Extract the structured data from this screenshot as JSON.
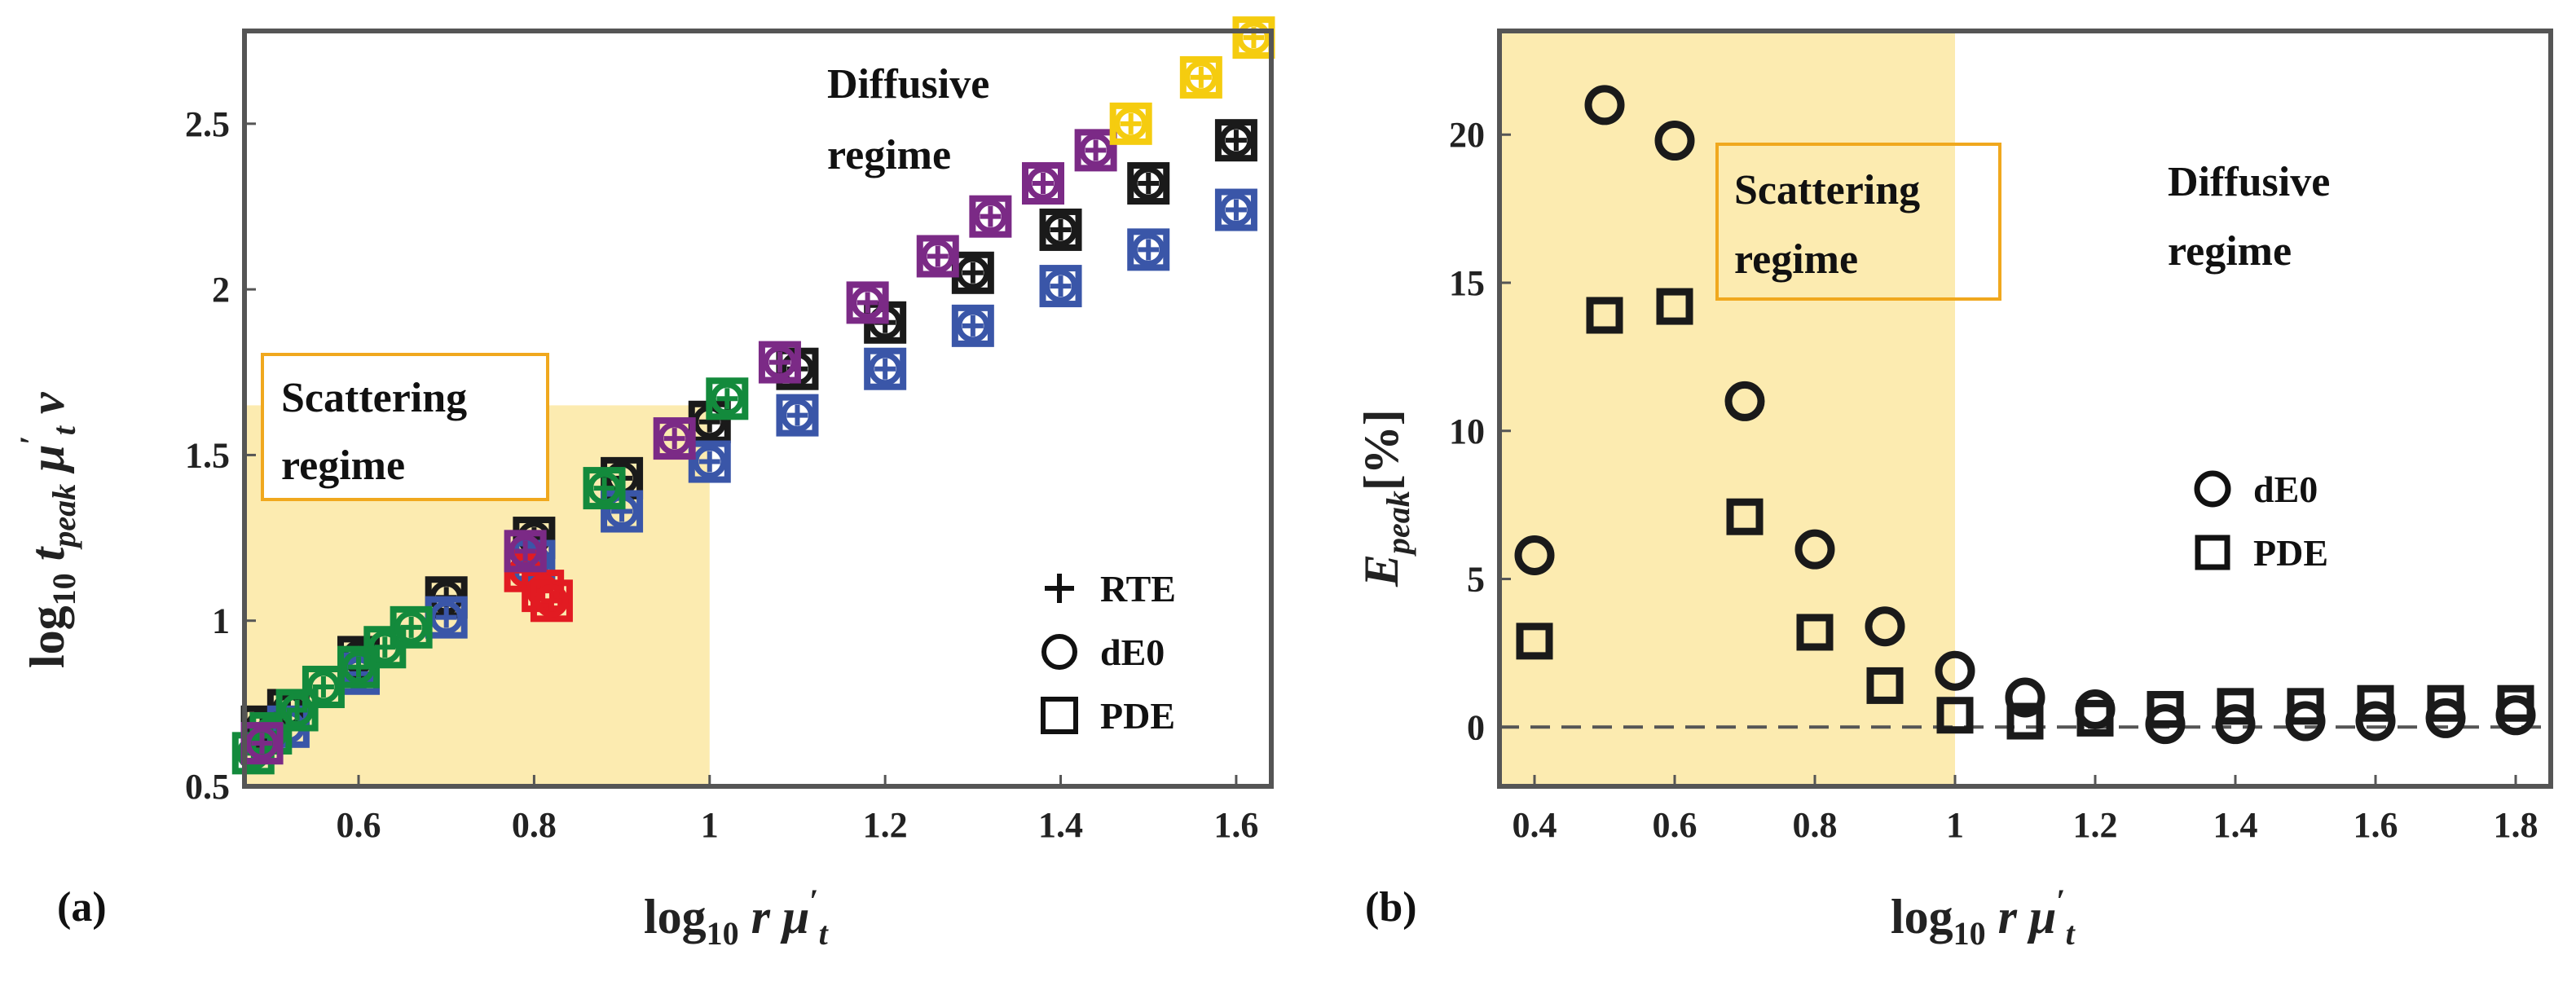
{
  "colors": {
    "black": "#1a1a1a",
    "blue": "#3a56a8",
    "green": "#138a3c",
    "red": "#e21b22",
    "purple": "#7b2a86",
    "yellow": "#f5cc0f",
    "shade": "#fcebb0",
    "box_border": "#f0a81e"
  },
  "chart_data": [
    {
      "type": "scatter",
      "panel": "(a)",
      "xlim": [
        0.47,
        1.64
      ],
      "ylim": [
        0.5,
        2.78
      ],
      "xticks": [
        "0.6",
        "0.8",
        "1",
        "1.2",
        "1.4",
        "1.6"
      ],
      "yticks": [
        "0.5",
        "1",
        "1.5",
        "2",
        "2.5"
      ],
      "shaded_region": {
        "x": [
          0.47,
          1.0
        ],
        "y": [
          0.5,
          1.65
        ]
      },
      "annotations": {
        "scattering_line1": "Scattering",
        "scattering_line2": "regime",
        "diffusive_line1": "Diffusive",
        "diffusive_line2": "regime"
      },
      "legend": {
        "placement": "bottom-right",
        "entries": [
          "RTE",
          "dE0",
          "PDE"
        ]
      },
      "series": [
        {
          "color": "black",
          "points": [
            [
              0.49,
              0.68
            ],
            [
              0.52,
              0.73
            ],
            [
              0.6,
              0.89
            ],
            [
              0.7,
              1.07
            ],
            [
              0.8,
              1.25
            ],
            [
              0.9,
              1.43
            ],
            [
              1.0,
              1.6
            ],
            [
              1.1,
              1.76
            ],
            [
              1.2,
              1.9
            ],
            [
              1.3,
              2.05
            ],
            [
              1.4,
              2.18
            ],
            [
              1.5,
              2.32
            ],
            [
              1.6,
              2.45
            ]
          ]
        },
        {
          "color": "blue",
          "points": [
            [
              0.49,
              0.63
            ],
            [
              0.52,
              0.68
            ],
            [
              0.6,
              0.84
            ],
            [
              0.7,
              1.01
            ],
            [
              0.8,
              1.18
            ],
            [
              0.9,
              1.33
            ],
            [
              1.0,
              1.48
            ],
            [
              1.1,
              1.62
            ],
            [
              1.2,
              1.76
            ],
            [
              1.3,
              1.89
            ],
            [
              1.4,
              2.01
            ],
            [
              1.5,
              2.12
            ],
            [
              1.6,
              2.24
            ]
          ]
        },
        {
          "color": "green",
          "points": [
            [
              0.48,
              0.6
            ],
            [
              0.5,
              0.66
            ],
            [
              0.53,
              0.73
            ],
            [
              0.56,
              0.8
            ],
            [
              0.6,
              0.86
            ],
            [
              0.63,
              0.92
            ],
            [
              0.66,
              0.98
            ],
            [
              0.88,
              1.4
            ],
            [
              1.02,
              1.67
            ]
          ]
        },
        {
          "color": "red",
          "points": [
            [
              0.79,
              1.15
            ],
            [
              0.81,
              1.09
            ],
            [
              0.82,
              1.06
            ]
          ]
        },
        {
          "color": "purple",
          "points": [
            [
              0.49,
              0.63
            ],
            [
              0.79,
              1.21
            ],
            [
              0.96,
              1.55
            ],
            [
              1.08,
              1.78
            ],
            [
              1.18,
              1.96
            ],
            [
              1.26,
              2.1
            ],
            [
              1.32,
              2.22
            ],
            [
              1.38,
              2.32
            ],
            [
              1.44,
              2.42
            ]
          ]
        },
        {
          "color": "yellow",
          "points": [
            [
              1.48,
              2.5
            ],
            [
              1.56,
              2.64
            ],
            [
              1.62,
              2.76
            ]
          ]
        }
      ]
    },
    {
      "type": "scatter",
      "panel": "(b)",
      "xlim": [
        0.35,
        1.85
      ],
      "ylim": [
        -2,
        23.5
      ],
      "xticks": [
        "0.4",
        "0.6",
        "0.8",
        "1",
        "1.2",
        "1.4",
        "1.6",
        "1.8"
      ],
      "yticks": [
        "0",
        "5",
        "10",
        "15",
        "20"
      ],
      "shaded_region": {
        "x": [
          0.35,
          1.0
        ]
      },
      "annotations": {
        "scattering_line1": "Scattering",
        "scattering_line2": "regime",
        "diffusive_line1": "Diffusive",
        "diffusive_line2": "regime"
      },
      "legend": {
        "placement": "right",
        "entries": [
          "dE0",
          "PDE"
        ]
      },
      "series": [
        {
          "name": "dE0",
          "x": [
            0.4,
            0.5,
            0.6,
            0.7,
            0.8,
            0.9,
            1.0,
            1.1,
            1.2,
            1.3,
            1.4,
            1.5,
            1.6,
            1.7,
            1.8
          ],
          "y": [
            5.8,
            21.0,
            19.8,
            11.0,
            6.0,
            3.4,
            1.9,
            1.0,
            0.6,
            0.1,
            0.1,
            0.2,
            0.2,
            0.3,
            0.4
          ]
        },
        {
          "name": "PDE",
          "x": [
            0.4,
            0.5,
            0.6,
            0.7,
            0.8,
            0.9,
            1.0,
            1.1,
            1.2,
            1.3,
            1.4,
            1.5,
            1.6,
            1.7,
            1.8
          ],
          "y": [
            2.9,
            13.9,
            14.2,
            7.1,
            3.2,
            1.4,
            0.4,
            0.2,
            0.3,
            0.6,
            0.7,
            0.7,
            0.8,
            0.8,
            0.8
          ]
        }
      ]
    }
  ]
}
